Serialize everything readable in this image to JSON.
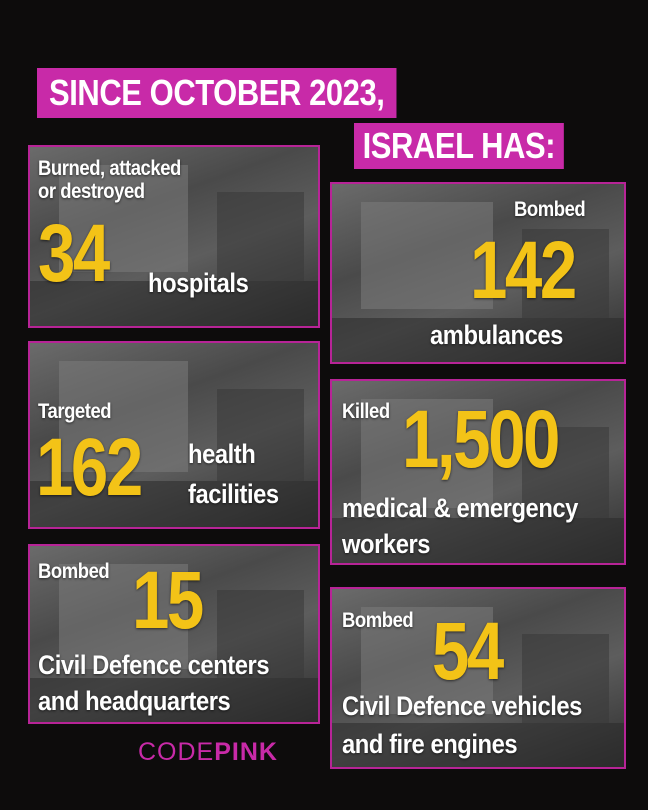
{
  "header": {
    "line1": "SINCE OCTOBER 2023,",
    "line2": "ISRAEL HAS:"
  },
  "cards": {
    "hospitals": {
      "pre": "Burned, attacked or destroyed",
      "pre_line1": "Burned, attacked",
      "pre_line2": "or destroyed",
      "number": "34",
      "post": "hospitals"
    },
    "ambulances": {
      "pre": "Bombed",
      "number": "142",
      "post": "ambulances"
    },
    "health": {
      "pre": "Targeted",
      "number": "162",
      "post_line1": "health",
      "post_line2": "facilities"
    },
    "workers": {
      "pre": "Killed",
      "number": "1,500",
      "post_line1": "medical & emergency",
      "post_line2": "workers"
    },
    "civil_centers": {
      "pre": "Bombed",
      "number": "15",
      "post_line1": "Civil Defence centers",
      "post_line2": "and headquarters"
    },
    "civil_vehicles": {
      "pre": "Bombed",
      "number": "54",
      "post_line1": "Civil Defence vehicles",
      "post_line2": "and fire engines"
    }
  },
  "brand": {
    "part1": "CODE",
    "part2": "PINK"
  },
  "colors": {
    "accent": "#c82aa8",
    "number": "#f3c317",
    "background": "#0d0c0c"
  }
}
